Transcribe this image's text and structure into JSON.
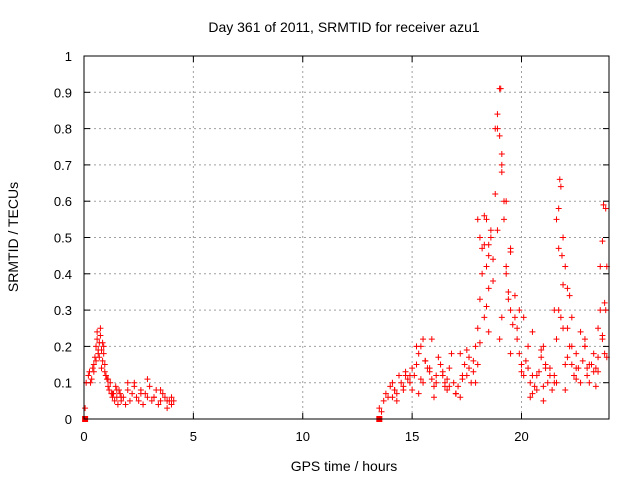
{
  "chart_data": {
    "type": "scatter",
    "title": "Day 361 of 2011, SRMTID for receiver azu1",
    "xlabel": "GPS time / hours",
    "ylabel": "SRMTID / TECUs",
    "xlim": [
      0,
      24
    ],
    "ylim": [
      0,
      1
    ],
    "grid": true,
    "marker": "plus",
    "color": "#ff0000",
    "x_ticks": [
      "0",
      "5",
      "10",
      "15",
      "20"
    ],
    "y_ticks": [
      "0",
      "0.1",
      "0.2",
      "0.3",
      "0.4",
      "0.5",
      "0.6",
      "0.7",
      "0.8",
      "0.9",
      "1"
    ],
    "series": [
      {
        "name": "azu1",
        "x": [
          0.05,
          0.1,
          0.2,
          0.25,
          0.3,
          0.35,
          0.4,
          0.45,
          0.5,
          0.55,
          0.6,
          0.65,
          0.7,
          0.75,
          0.8,
          0.85,
          0.9,
          0.95,
          1.0,
          1.05,
          1.1,
          1.15,
          1.2,
          1.25,
          1.3,
          1.35,
          1.4,
          1.45,
          1.5,
          1.55,
          1.6,
          1.65,
          1.7,
          1.8,
          1.9,
          2.0,
          2.1,
          2.2,
          2.3,
          2.4,
          2.5,
          2.6,
          2.7,
          2.8,
          2.9,
          3.0,
          3.1,
          3.2,
          3.3,
          3.4,
          3.5,
          3.6,
          3.7,
          3.8,
          3.9,
          4.0,
          4.1,
          0.45,
          0.55,
          0.65,
          0.75,
          0.85,
          0.95,
          1.0,
          0.6,
          0.7,
          0.8,
          0.9,
          13.5,
          13.6,
          13.7,
          13.8,
          13.9,
          14.0,
          14.1,
          14.2,
          14.3,
          14.4,
          14.5,
          14.6,
          14.7,
          14.8,
          14.9,
          15.0,
          15.1,
          15.2,
          15.3,
          15.4,
          15.5,
          15.6,
          15.7,
          15.8,
          15.9,
          16.0,
          16.1,
          16.2,
          16.3,
          16.4,
          16.5,
          16.6,
          16.7,
          16.8,
          16.9,
          17.0,
          17.1,
          17.2,
          17.3,
          17.4,
          17.5,
          17.6,
          17.7,
          17.8,
          17.9,
          18.0,
          18.1,
          18.2,
          18.3,
          18.4,
          18.5,
          18.6,
          18.7,
          18.8,
          18.9,
          19.0,
          19.1,
          19.2,
          19.3,
          19.4,
          19.5,
          19.6,
          19.7,
          19.8,
          19.9,
          20.0,
          20.1,
          20.2,
          20.3,
          20.4,
          20.5,
          20.6,
          20.7,
          20.8,
          20.9,
          21.0,
          21.1,
          21.2,
          21.3,
          21.4,
          21.5,
          21.6,
          21.7,
          21.8,
          21.9,
          22.0,
          22.1,
          22.2,
          22.3,
          22.4,
          22.5,
          22.6,
          22.7,
          22.8,
          22.9,
          23.0,
          23.1,
          23.2,
          23.3,
          23.4,
          23.5,
          23.6,
          23.7,
          23.8,
          23.9,
          14.1,
          14.3,
          14.6,
          14.9,
          15.2,
          15.4,
          15.6,
          15.8,
          16.1,
          16.4,
          16.7,
          17.0,
          17.3,
          17.6,
          17.9,
          18.1,
          18.3,
          18.5,
          18.7,
          18.9,
          19.1,
          19.3,
          19.5,
          19.7,
          19.9,
          20.1,
          20.3,
          20.5,
          20.7,
          20.9,
          21.1,
          21.3,
          21.5,
          21.7,
          21.9,
          22.1,
          22.3,
          22.5,
          22.7,
          22.9,
          23.1,
          23.3,
          23.5,
          23.7,
          23.85,
          18.0,
          18.1,
          18.2,
          18.3,
          18.4,
          18.5,
          18.6,
          18.8,
          18.9,
          19.0,
          19.05,
          19.1,
          19.2,
          19.3,
          19.4,
          19.5,
          21.6,
          21.7,
          21.75,
          21.8,
          21.85,
          21.9,
          22.0,
          22.1,
          22.2,
          23.6,
          23.7,
          23.75,
          23.8,
          23.85,
          23.9,
          15.0,
          15.5,
          16.0,
          16.5,
          17.0,
          17.5,
          18.0,
          18.5,
          19.0,
          19.5,
          20.0,
          20.5,
          21.0,
          21.5,
          22.0,
          22.5,
          23.0,
          23.5,
          14.2,
          14.7,
          15.3,
          15.9,
          16.6,
          17.2,
          17.8,
          18.4,
          19.1,
          19.8,
          20.4,
          21.0,
          21.6,
          22.3,
          22.9,
          23.4,
          1.1,
          1.3,
          1.5,
          1.7,
          2.0,
          2.3,
          2.6,
          2.9,
          3.2,
          3.5,
          3.8,
          4.0
        ],
        "y": [
          0.03,
          0.1,
          0.12,
          0.13,
          0.1,
          0.11,
          0.14,
          0.15,
          0.17,
          0.2,
          0.22,
          0.18,
          0.21,
          0.25,
          0.19,
          0.16,
          0.2,
          0.13,
          0.12,
          0.11,
          0.09,
          0.08,
          0.1,
          0.07,
          0.06,
          0.07,
          0.05,
          0.09,
          0.06,
          0.04,
          0.08,
          0.07,
          0.05,
          0.06,
          0.04,
          0.08,
          0.05,
          0.07,
          0.1,
          0.06,
          0.05,
          0.08,
          0.04,
          0.07,
          0.06,
          0.09,
          0.05,
          0.06,
          0.08,
          0.04,
          0.05,
          0.07,
          0.06,
          0.03,
          0.05,
          0.04,
          0.05,
          0.13,
          0.16,
          0.19,
          0.23,
          0.21,
          0.15,
          0.12,
          0.24,
          0.17,
          0.14,
          0.18,
          0.03,
          0.02,
          0.05,
          0.07,
          0.06,
          0.09,
          0.1,
          0.08,
          0.07,
          0.12,
          0.1,
          0.09,
          0.13,
          0.11,
          0.1,
          0.08,
          0.12,
          0.15,
          0.18,
          0.2,
          0.22,
          0.16,
          0.14,
          0.13,
          0.11,
          0.09,
          0.12,
          0.17,
          0.15,
          0.12,
          0.1,
          0.08,
          0.14,
          0.18,
          0.1,
          0.07,
          0.09,
          0.06,
          0.12,
          0.15,
          0.19,
          0.17,
          0.1,
          0.13,
          0.2,
          0.25,
          0.33,
          0.4,
          0.48,
          0.55,
          0.45,
          0.5,
          0.38,
          0.62,
          0.8,
          0.91,
          0.68,
          0.55,
          0.42,
          0.33,
          0.3,
          0.26,
          0.28,
          0.22,
          0.18,
          0.15,
          0.12,
          0.16,
          0.14,
          0.1,
          0.12,
          0.09,
          0.08,
          0.13,
          0.17,
          0.2,
          0.14,
          0.1,
          0.12,
          0.08,
          0.1,
          0.22,
          0.3,
          0.28,
          0.25,
          0.15,
          0.17,
          0.2,
          0.15,
          0.12,
          0.18,
          0.14,
          0.1,
          0.16,
          0.2,
          0.12,
          0.1,
          0.15,
          0.18,
          0.14,
          0.25,
          0.3,
          0.22,
          0.18,
          0.17,
          0.06,
          0.05,
          0.08,
          0.12,
          0.2,
          0.11,
          0.16,
          0.14,
          0.1,
          0.13,
          0.09,
          0.07,
          0.11,
          0.14,
          0.1,
          0.21,
          0.28,
          0.36,
          0.44,
          0.52,
          0.7,
          0.6,
          0.47,
          0.34,
          0.3,
          0.28,
          0.2,
          0.24,
          0.12,
          0.19,
          0.15,
          0.14,
          0.3,
          0.47,
          0.37,
          0.25,
          0.28,
          0.14,
          0.24,
          0.2,
          0.15,
          0.13,
          0.17,
          0.23,
          0.3,
          0.55,
          0.5,
          0.47,
          0.56,
          0.42,
          0.48,
          0.52,
          0.8,
          0.84,
          0.78,
          0.91,
          0.73,
          0.6,
          0.4,
          0.35,
          0.46,
          0.55,
          0.58,
          0.66,
          0.64,
          0.45,
          0.5,
          0.42,
          0.36,
          0.34,
          0.42,
          0.49,
          0.59,
          0.32,
          0.58,
          0.42,
          0.14,
          0.1,
          0.06,
          0.09,
          0.07,
          0.12,
          0.15,
          0.24,
          0.22,
          0.18,
          0.13,
          0.07,
          0.09,
          0.12,
          0.08,
          0.11,
          0.14,
          0.13,
          0.08,
          0.12,
          0.07,
          0.22,
          0.11,
          0.18,
          0.16,
          0.31,
          0.28,
          0.25,
          0.06,
          0.05,
          0.1,
          0.2,
          0.22,
          0.09,
          0.11,
          0.07,
          0.08,
          0.06,
          0.1,
          0.09,
          0.07,
          0.11,
          0.06,
          0.08,
          0.05,
          0.06
        ]
      }
    ],
    "zero_markers_x": [
      0.05,
      13.5
    ]
  }
}
